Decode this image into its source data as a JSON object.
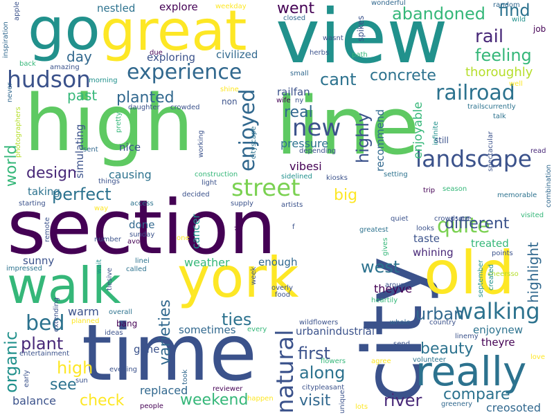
{
  "colors": {
    "background": "#ffffff"
  },
  "words": [
    {
      "text": "high",
      "color": "#5ec962"
    },
    {
      "text": "line",
      "color": "#5ec962"
    },
    {
      "text": "section",
      "color": "#440154"
    },
    {
      "text": "city",
      "color": "#3b528b"
    },
    {
      "text": "view",
      "color": "#21918c"
    },
    {
      "text": "time",
      "color": "#3b528b"
    },
    {
      "text": "walk",
      "color": "#35b779"
    },
    {
      "text": "york",
      "color": "#fde725"
    },
    {
      "text": "old",
      "color": "#fde725"
    },
    {
      "text": "go",
      "color": "#21918c"
    },
    {
      "text": "great",
      "color": "#fde725"
    },
    {
      "text": "really",
      "color": "#2c728e"
    },
    {
      "text": "experience",
      "color": "#31688e"
    },
    {
      "text": "hudson",
      "color": "#3b528b"
    },
    {
      "text": "street",
      "color": "#7ad151"
    },
    {
      "text": "landscape",
      "color": "#3b528b"
    },
    {
      "text": "new",
      "color": "#3b528b"
    },
    {
      "text": "walking",
      "color": "#2c728e"
    },
    {
      "text": "enjoyed",
      "color": "#31688e"
    },
    {
      "text": "natural",
      "color": "#3b528b"
    },
    {
      "text": "railroad",
      "color": "#2c728e"
    },
    {
      "text": "quite",
      "color": "#7ad151"
    },
    {
      "text": "perfect",
      "color": "#2c728e"
    },
    {
      "text": "design",
      "color": "#482878"
    },
    {
      "text": "bed",
      "color": "#2c728e"
    },
    {
      "text": "plant",
      "color": "#482878"
    },
    {
      "text": "weekend",
      "color": "#35b779"
    },
    {
      "text": "abandoned",
      "color": "#35b779"
    },
    {
      "text": "feeling",
      "color": "#35b779"
    },
    {
      "text": "different",
      "color": "#3b528b"
    },
    {
      "text": "concrete",
      "color": "#2c728e"
    },
    {
      "text": "cant",
      "color": "#2c728e"
    },
    {
      "text": "planted",
      "color": "#31688e"
    },
    {
      "text": "rail",
      "color": "#482878"
    },
    {
      "text": "find",
      "color": "#2c728e"
    },
    {
      "text": "went",
      "color": "#440154"
    },
    {
      "text": "real",
      "color": "#31688e"
    },
    {
      "text": "highly",
      "color": "#3b528b"
    },
    {
      "text": "ties",
      "color": "#2c728e"
    },
    {
      "text": "west",
      "color": "#2c728e"
    },
    {
      "text": "urban",
      "color": "#31688e"
    },
    {
      "text": "first",
      "color": "#3b528b"
    },
    {
      "text": "along",
      "color": "#2c728e"
    },
    {
      "text": "visit",
      "color": "#31688e"
    },
    {
      "text": "river",
      "color": "#482878"
    },
    {
      "text": "compare",
      "color": "#2c728e"
    },
    {
      "text": "beauty",
      "color": "#2c728e"
    },
    {
      "text": "check",
      "color": "#fde725"
    },
    {
      "text": "see",
      "color": "#2c728e"
    },
    {
      "text": "high",
      "color": "#fde725"
    },
    {
      "text": "organic",
      "color": "#21918c"
    },
    {
      "text": "varieties",
      "color": "#31688e"
    },
    {
      "text": "world",
      "color": "#35b779"
    },
    {
      "text": "past",
      "color": "#35b779"
    },
    {
      "text": "day",
      "color": "#31688e"
    },
    {
      "text": "big",
      "color": "#fde725"
    },
    {
      "text": "highlight",
      "color": "#31688e"
    },
    {
      "text": "thoroughly",
      "color": "#b5de2b"
    },
    {
      "text": "enjoyable",
      "color": "#35b779"
    },
    {
      "text": "balance",
      "color": "#3b528b"
    },
    {
      "text": "replaced",
      "color": "#31688e"
    },
    {
      "text": "creosoted",
      "color": "#31688e"
    },
    {
      "text": "explore",
      "color": "#440154"
    },
    {
      "text": "nestled",
      "color": "#2c728e"
    },
    {
      "text": "exploring",
      "color": "#3b528b"
    },
    {
      "text": "civilized",
      "color": "#31688e"
    },
    {
      "text": "railfan",
      "color": "#3b528b"
    },
    {
      "text": "pressure",
      "color": "#2c728e"
    },
    {
      "text": "recommend",
      "color": "#31688e"
    },
    {
      "text": "vibesi",
      "color": "#440154"
    },
    {
      "text": "simulating",
      "color": "#3b528b"
    },
    {
      "text": "nice",
      "color": "#3b528b"
    },
    {
      "text": "causing",
      "color": "#2c728e"
    },
    {
      "text": "taking",
      "color": "#2c728e"
    },
    {
      "text": "sunny",
      "color": "#3b528b"
    },
    {
      "text": "warm",
      "color": "#3b528b"
    },
    {
      "text": "weather",
      "color": "#35b779"
    },
    {
      "text": "enough",
      "color": "#31688e"
    },
    {
      "text": "taste",
      "color": "#3b528b"
    },
    {
      "text": "whining",
      "color": "#482878"
    },
    {
      "text": "treated",
      "color": "#35b779"
    },
    {
      "text": "theyve",
      "color": "#440154"
    },
    {
      "text": "enjoynew",
      "color": "#2c728e"
    },
    {
      "text": "urbanindustrial",
      "color": "#3b528b"
    },
    {
      "text": "done",
      "color": "#31688e"
    },
    {
      "text": "sometimes",
      "color": "#31688e"
    },
    {
      "text": "gone",
      "color": "#3b528b"
    },
    {
      "text": "theyre",
      "color": "#440154"
    },
    {
      "text": "cancer",
      "color": "#21918c"
    },
    {
      "text": "spikes",
      "color": "#3b528b"
    },
    {
      "text": "job",
      "color": "#440154"
    },
    {
      "text": "wonderful",
      "color": "#31688e"
    },
    {
      "text": "random",
      "color": "#31688e"
    },
    {
      "text": "wild",
      "color": "#21918c"
    },
    {
      "text": "weekday",
      "color": "#fde725"
    },
    {
      "text": "closed",
      "color": "#31688e"
    },
    {
      "text": "wasnt",
      "color": "#3b528b"
    },
    {
      "text": "herbs",
      "color": "#3b528b"
    },
    {
      "text": "path",
      "color": "#35b779"
    },
    {
      "text": "small",
      "color": "#31688e"
    },
    {
      "text": "well",
      "color": "#fde725"
    },
    {
      "text": "due",
      "color": "#440154"
    },
    {
      "text": "morning",
      "color": "#21918c"
    },
    {
      "text": "amazing",
      "color": "#3b528b"
    },
    {
      "text": "back",
      "color": "#35b779"
    },
    {
      "text": "apple",
      "color": "#3b528b"
    },
    {
      "text": "inspiration",
      "color": "#31688e"
    },
    {
      "text": "shine",
      "color": "#fde725"
    },
    {
      "text": "non",
      "color": "#3b528b"
    },
    {
      "text": "wife",
      "color": "#440154"
    },
    {
      "text": "ny",
      "color": "#3b528b"
    },
    {
      "text": "cityscape",
      "color": "#2c728e"
    },
    {
      "text": "daughter",
      "color": "#3b528b"
    },
    {
      "text": "crowded",
      "color": "#3b528b"
    },
    {
      "text": "pretty",
      "color": "#35b779"
    },
    {
      "text": "photographers",
      "color": "#b5de2b"
    },
    {
      "text": "never",
      "color": "#31688e"
    },
    {
      "text": "working",
      "color": "#3b528b"
    },
    {
      "text": "sent",
      "color": "#31688e"
    },
    {
      "text": "depending",
      "color": "#3b528b"
    },
    {
      "text": "still",
      "color": "#3b528b"
    },
    {
      "text": "infinite",
      "color": "#21918c"
    },
    {
      "text": "trailscurrently",
      "color": "#2c728e"
    },
    {
      "text": "talk",
      "color": "#2c728e"
    },
    {
      "text": "spectacular",
      "color": "#3b528b"
    },
    {
      "text": "read",
      "color": "#482878"
    },
    {
      "text": "combination",
      "color": "#31688e"
    },
    {
      "text": "construction",
      "color": "#35b779"
    },
    {
      "text": "sidelined",
      "color": "#21918c"
    },
    {
      "text": "kiosks",
      "color": "#3b528b"
    },
    {
      "text": "setting",
      "color": "#2c728e"
    },
    {
      "text": "trip",
      "color": "#440154"
    },
    {
      "text": "season",
      "color": "#35b779"
    },
    {
      "text": "memorable",
      "color": "#2c728e"
    },
    {
      "text": "light",
      "color": "#3b528b"
    },
    {
      "text": "artists",
      "color": "#3b528b"
    },
    {
      "text": "decided",
      "color": "#3b528b"
    },
    {
      "text": "supply",
      "color": "#3b528b"
    },
    {
      "text": "things",
      "color": "#3b528b"
    },
    {
      "text": "starting",
      "color": "#3b528b"
    },
    {
      "text": "way",
      "color": "#fde725"
    },
    {
      "text": "access",
      "color": "#2c728e"
    },
    {
      "text": "remote",
      "color": "#3b528b"
    },
    {
      "text": "another",
      "color": "#440154"
    },
    {
      "text": "number",
      "color": "#3b528b"
    },
    {
      "text": "sunday",
      "color": "#3b528b"
    },
    {
      "text": "avoid",
      "color": "#440154"
    },
    {
      "text": "one",
      "color": "#fde725"
    },
    {
      "text": "f",
      "color": "#3b528b"
    },
    {
      "text": "quiet",
      "color": "#3b528b"
    },
    {
      "text": "greatest",
      "color": "#2c728e"
    },
    {
      "text": "gives",
      "color": "#35b779"
    },
    {
      "text": "looks",
      "color": "#3b528b"
    },
    {
      "text": "crowdsone",
      "color": "#3b528b"
    },
    {
      "text": "visited",
      "color": "#35b779"
    },
    {
      "text": "points",
      "color": "#3b528b"
    },
    {
      "text": "cheersso",
      "color": "#b5de2b"
    },
    {
      "text": "impressed",
      "color": "#2c728e"
    },
    {
      "text": "linei",
      "color": "#2c728e"
    },
    {
      "text": "called",
      "color": "#2c728e"
    },
    {
      "text": "wait",
      "color": "#21918c"
    },
    {
      "text": "tiesive",
      "color": "#3b528b"
    },
    {
      "text": "week",
      "color": "#3b528b"
    },
    {
      "text": "overly",
      "color": "#3b528b"
    },
    {
      "text": "food",
      "color": "#3b528b"
    },
    {
      "text": "heartily",
      "color": "#35b779"
    },
    {
      "text": "around",
      "color": "#3b528b"
    },
    {
      "text": "created",
      "color": "#21918c"
    },
    {
      "text": "september",
      "color": "#21918c"
    },
    {
      "text": "extending",
      "color": "#3b528b"
    },
    {
      "text": "planned",
      "color": "#fde725"
    },
    {
      "text": "overall",
      "color": "#2c728e"
    },
    {
      "text": "bang",
      "color": "#440154"
    },
    {
      "text": "ideas",
      "color": "#3b528b"
    },
    {
      "text": "every",
      "color": "#35b779"
    },
    {
      "text": "wildflowers",
      "color": "#3b528b"
    },
    {
      "text": "whole",
      "color": "#31688e"
    },
    {
      "text": "country",
      "color": "#3b528b"
    },
    {
      "text": "send",
      "color": "#3b528b"
    },
    {
      "text": "linemy",
      "color": "#3b528b"
    },
    {
      "text": "entertainment",
      "color": "#3b528b"
    },
    {
      "text": "early",
      "color": "#3b528b"
    },
    {
      "text": "sun",
      "color": "#3b528b"
    },
    {
      "text": "evening",
      "color": "#3b528b"
    },
    {
      "text": "took",
      "color": "#31688e"
    },
    {
      "text": "flowers",
      "color": "#35b779"
    },
    {
      "text": "agree",
      "color": "#fde725"
    },
    {
      "text": "volunteer",
      "color": "#2c728e"
    },
    {
      "text": "love",
      "color": "#fde725"
    },
    {
      "text": "reviewer",
      "color": "#440154"
    },
    {
      "text": "citypleasant",
      "color": "#3b528b"
    },
    {
      "text": "unique",
      "color": "#3b528b"
    },
    {
      "text": "people",
      "color": "#440154"
    },
    {
      "text": "happen",
      "color": "#fde725"
    },
    {
      "text": "lots",
      "color": "#fde725"
    },
    {
      "text": "greenery",
      "color": "#31688e"
    }
  ]
}
